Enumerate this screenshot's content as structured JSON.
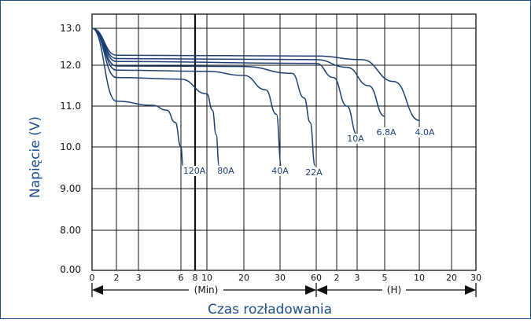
{
  "chart_data": {
    "type": "line",
    "xlabel": "Czas rozładowania",
    "ylabel": "Napięcie (V)",
    "y_ticks": [
      "0.00",
      "8.00",
      "9.00",
      "10.0",
      "11.0",
      "12.0",
      "13.0"
    ],
    "x_ticks_min": [
      "0",
      "2",
      "3",
      "6",
      "8",
      "10",
      "20",
      "30",
      "60"
    ],
    "x_ticks_h": [
      "2",
      "3",
      "5",
      "10",
      "20",
      "30"
    ],
    "min_label": "(Min)",
    "h_label": "(H)",
    "grid": true,
    "x_unit_note": "x in minutes",
    "series": [
      {
        "name": "120A",
        "points": [
          [
            0,
            13.0
          ],
          [
            2,
            11.12
          ],
          [
            4,
            11.02
          ],
          [
            5,
            10.9
          ],
          [
            5.6,
            10.6
          ],
          [
            6.0,
            10.0
          ],
          [
            6.3,
            9.55
          ]
        ]
      },
      {
        "name": "80A",
        "points": [
          [
            0,
            13.0
          ],
          [
            2,
            11.7
          ],
          [
            6,
            11.66
          ],
          [
            10,
            11.3
          ],
          [
            11.5,
            10.9
          ],
          [
            12.5,
            10.3
          ],
          [
            13.3,
            9.55
          ]
        ]
      },
      {
        "name": "40A",
        "points": [
          [
            0,
            13.0
          ],
          [
            2,
            11.88
          ],
          [
            10,
            11.85
          ],
          [
            20,
            11.75
          ],
          [
            26,
            11.4
          ],
          [
            29,
            10.8
          ],
          [
            31,
            9.55
          ]
        ]
      },
      {
        "name": "22A",
        "points": [
          [
            0,
            13.0
          ],
          [
            2,
            11.98
          ],
          [
            20,
            11.97
          ],
          [
            40,
            11.8
          ],
          [
            50,
            11.2
          ],
          [
            55,
            10.6
          ],
          [
            59,
            9.55
          ]
        ]
      },
      {
        "name": "10A",
        "points": [
          [
            0,
            13.0
          ],
          [
            2,
            12.1
          ],
          [
            60,
            12.05
          ],
          [
            110,
            11.7
          ],
          [
            150,
            11.0
          ],
          [
            180,
            10.3
          ]
        ]
      },
      {
        "name": "6.8A",
        "points": [
          [
            0,
            13.0
          ],
          [
            2,
            12.18
          ],
          [
            60,
            12.15
          ],
          [
            150,
            11.95
          ],
          [
            230,
            11.5
          ],
          [
            300,
            10.75
          ]
        ]
      },
      {
        "name": "4.0A",
        "points": [
          [
            0,
            13.0
          ],
          [
            2,
            12.27
          ],
          [
            60,
            12.25
          ],
          [
            200,
            12.15
          ],
          [
            380,
            11.6
          ],
          [
            600,
            10.65
          ]
        ]
      }
    ]
  }
}
